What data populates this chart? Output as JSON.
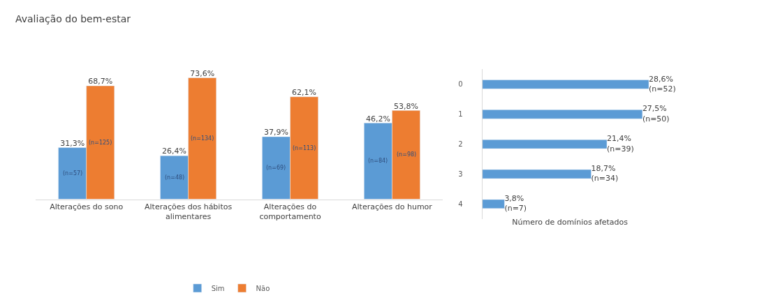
{
  "chart_data": [
    {
      "type": "bar",
      "title": "Avaliação do bem-estar",
      "categories": [
        "Alterações do sono",
        "Alterações dos hábitos\nalimentares",
        "Alterações do\ncomportamento",
        "Alterações do humor"
      ],
      "series": [
        {
          "name": "Sim",
          "color": "#5b9bd5",
          "values": [
            31.3,
            26.4,
            37.9,
            46.2
          ],
          "value_labels": [
            "31,3%",
            "26,4%",
            "37,9%",
            "46,2%"
          ]
        },
        {
          "name": "Não",
          "color": "#ed7d31",
          "values": [
            68.7,
            73.6,
            62.1,
            53.8
          ],
          "value_labels": [
            "68,7%",
            "73,6%",
            "62,1%",
            "53,8%"
          ]
        }
      ],
      "annotations": [
        "(n=57)",
        "(n=48)",
        "(n=69)",
        "(n=84)",
        "(n=125)",
        "(n=134)",
        "(n=113)",
        "(n=98)"
      ],
      "legend": "bottom"
    },
    {
      "type": "bar",
      "orientation": "horizontal",
      "xlabel": "Número de domínios afetados",
      "categories": [
        "0",
        "1",
        "2",
        "3",
        "4"
      ],
      "series": [
        {
          "color": "#5b9bd5",
          "values": [
            28.6,
            27.5,
            21.4,
            18.7,
            3.8
          ],
          "value_labels": [
            "28,6%\n(n=52)",
            "27,5%\n(n=50)",
            "21,4%\n(n=39)",
            "18,7%\n(n=34)",
            "3,8%\n(n=7)"
          ]
        }
      ],
      "legend": false
    }
  ]
}
